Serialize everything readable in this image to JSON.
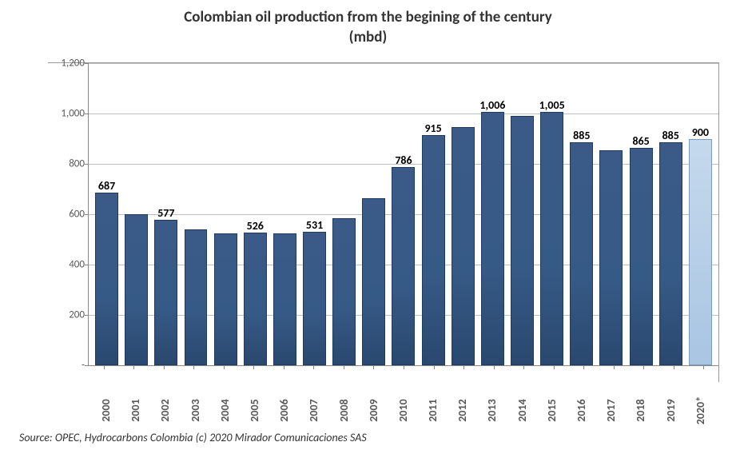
{
  "chart": {
    "type": "bar",
    "title_line1": "Colombian oil production from the begining of the century",
    "title_line2": "(mbd)",
    "title_fontsize": 19,
    "title_color": "#333333",
    "categories": [
      "2000",
      "2001",
      "2002",
      "2003",
      "2004",
      "2005",
      "2006",
      "2007",
      "2008",
      "2009",
      "2010",
      "2011",
      "2012",
      "2013",
      "2014",
      "2015",
      "2016",
      "2017",
      "2018",
      "2019",
      "2020*"
    ],
    "values": [
      687,
      600,
      577,
      540,
      525,
      526,
      525,
      531,
      585,
      665,
      786,
      915,
      945,
      1006,
      990,
      1005,
      885,
      855,
      865,
      885,
      900
    ],
    "show_label": [
      true,
      false,
      true,
      false,
      false,
      true,
      false,
      true,
      false,
      false,
      true,
      true,
      false,
      true,
      false,
      true,
      true,
      false,
      true,
      true,
      true
    ],
    "display_labels": [
      "687",
      "",
      "577",
      "",
      "",
      "526",
      "",
      "531",
      "",
      "",
      "786",
      "915",
      "",
      "1,006",
      "",
      "1,005",
      "885",
      "",
      "865",
      "885",
      "900"
    ],
    "bar_colors": [
      "#365a86",
      "#365a86",
      "#365a86",
      "#365a86",
      "#365a86",
      "#365a86",
      "#365a86",
      "#365a86",
      "#365a86",
      "#365a86",
      "#365a86",
      "#365a86",
      "#365a86",
      "#365a86",
      "#365a86",
      "#365a86",
      "#365a86",
      "#365a86",
      "#365a86",
      "#365a86",
      "#b6cde6"
    ],
    "bar_border": "#1f3a5f",
    "bar_alt_index": 20,
    "ylim": [
      0,
      1200
    ],
    "ytick_step": 200,
    "ytick_labels": [
      "-",
      "200",
      "400",
      "600",
      "800",
      "1,000",
      "1,200"
    ],
    "grid_color": "#bfbfbf",
    "axis_color": "#888888",
    "background_color": "#ffffff",
    "label_fontsize": 13,
    "datalabel_fontsize": 14,
    "xlabel_fontsize": 14,
    "bar_width": 0.78
  },
  "source_text": "Source:  OPEC, Hydrocarbons  Colombia (c) 2020 Mirador Comunicaciones SAS",
  "source_fontsize": 14
}
